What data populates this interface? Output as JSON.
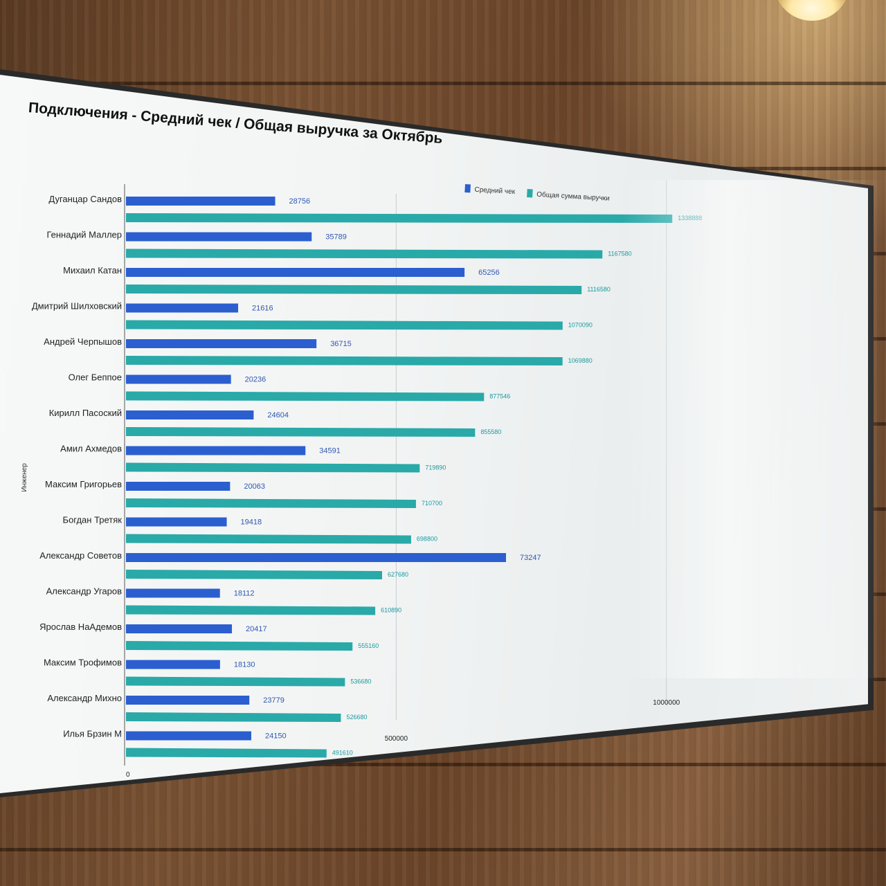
{
  "colors": {
    "avg_check": "#2b5fd0",
    "total_revenue": "#2aa9a9"
  },
  "chart_data": {
    "type": "bar",
    "orientation": "horizontal",
    "title": "Подключения - Средний чек / Общая выручка за Октябрь",
    "ylabel": "Инженер",
    "xlabel": "",
    "xlim": [
      0,
      1300000
    ],
    "x_ticks": [
      "0",
      "500000",
      "1000000"
    ],
    "legend": {
      "placement": "top-right",
      "items": [
        "Средний чек",
        "Общая сумма выручки"
      ]
    },
    "categories": [
      "Дуганцар Сандов",
      "Геннадий Маллер",
      "Михаил Катан",
      "Дмитрий Шилховский",
      "Андрей Черпышов",
      "Олег Беппое",
      "Кирилл Пасоский",
      "Амил Ахмедов",
      "Максим Григорьев",
      "Богдан Третяк",
      "Александр Советов",
      "Александр Угаров",
      "Ярослав НаАдемов",
      "Максим Трофимов",
      "Александр Михно",
      "Илья Брзин М"
    ],
    "series": [
      {
        "name": "Средний чек",
        "values": [
          28756,
          35789,
          65256,
          21616,
          36715,
          20236,
          24604,
          34591,
          20063,
          19418,
          73247,
          18112,
          20417,
          18130,
          23779,
          24150
        ],
        "labels": [
          "28756",
          "35789",
          "65256",
          "21616",
          "36715",
          "20236",
          "24604",
          "34591",
          "20063",
          "19418",
          "73247",
          "18112",
          "20417",
          "18130",
          "23779",
          "24150"
        ]
      },
      {
        "name": "Общая сумма выручки",
        "values": [
          1338888,
          1167580,
          1116580,
          1070090,
          1069880,
          877546,
          855580,
          719890,
          710700,
          698800,
          627680,
          610890,
          555160,
          536680,
          526680,
          491610
        ],
        "labels": [
          "1338888",
          "1167580",
          "1116580",
          "1070090",
          "1069880",
          "877546",
          "855580",
          "719890",
          "710700",
          "698800",
          "627680",
          "610890",
          "555160",
          "536680",
          "526680",
          "491610"
        ]
      }
    ]
  }
}
